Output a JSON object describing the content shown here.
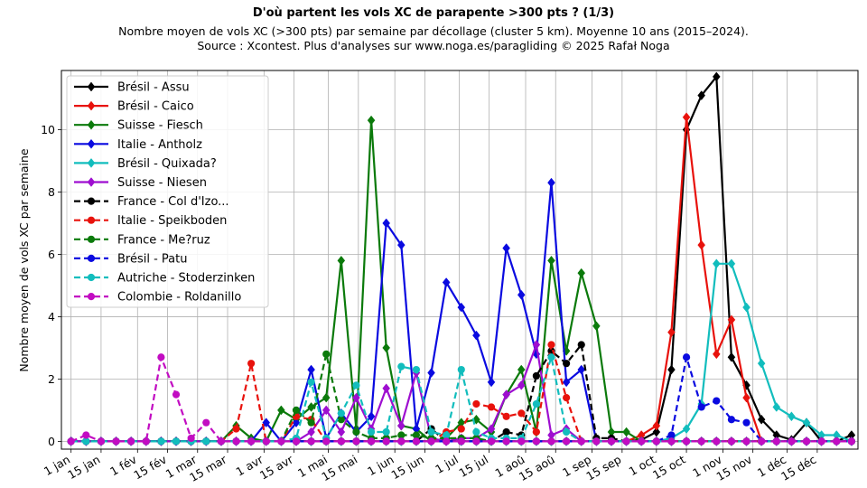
{
  "chart_data": {
    "type": "line",
    "title": "D'où partent les vols XC de parapente >300 pts ? (1/3)",
    "subtitle_lines": [
      "Nombre moyen de vols XC (>300 pts) par semaine par décollage (cluster 5 km). Moyenne 10 ans (2015–2024).",
      "Source : Xcontest. Plus d'analyses sur www.noga.es/paragliding © 2025 Rafał Noga"
    ],
    "ylabel": "Nombre moyen de vols XC par semaine",
    "xlabel": "",
    "x_ticks": [
      {
        "day": 1,
        "label": "1 jan"
      },
      {
        "day": 15,
        "label": "15 jan"
      },
      {
        "day": 32,
        "label": "1 fév"
      },
      {
        "day": 46,
        "label": "15 fév"
      },
      {
        "day": 60,
        "label": "1 mar"
      },
      {
        "day": 74,
        "label": "15 mar"
      },
      {
        "day": 91,
        "label": "1 avr"
      },
      {
        "day": 105,
        "label": "15 avr"
      },
      {
        "day": 121,
        "label": "1 mai"
      },
      {
        "day": 135,
        "label": "15 mai"
      },
      {
        "day": 152,
        "label": "1 jun"
      },
      {
        "day": 166,
        "label": "15 jun"
      },
      {
        "day": 182,
        "label": "1 jul"
      },
      {
        "day": 196,
        "label": "15 jul"
      },
      {
        "day": 213,
        "label": "1 aoû"
      },
      {
        "day": 227,
        "label": "15 aoû"
      },
      {
        "day": 244,
        "label": "1 sep"
      },
      {
        "day": 258,
        "label": "15 sep"
      },
      {
        "day": 274,
        "label": "1 oct"
      },
      {
        "day": 288,
        "label": "15 oct"
      },
      {
        "day": 305,
        "label": "1 nov"
      },
      {
        "day": 319,
        "label": "15 nov"
      },
      {
        "day": 335,
        "label": "1 déc"
      },
      {
        "day": 349,
        "label": "15 déc"
      }
    ],
    "y_ticks": [
      0,
      2,
      4,
      6,
      8,
      10
    ],
    "xlim": [
      -3.5,
      368
    ],
    "ylim": [
      -0.25,
      11.9
    ],
    "grid": true,
    "legend_position": "top-left",
    "week_day_of_year": [
      1,
      8,
      15,
      22,
      29,
      36,
      43,
      50,
      57,
      64,
      71,
      78,
      85,
      92,
      99,
      106,
      113,
      120,
      127,
      134,
      141,
      148,
      155,
      162,
      169,
      176,
      183,
      190,
      197,
      204,
      211,
      218,
      225,
      232,
      239,
      246,
      253,
      260,
      267,
      274,
      281,
      288,
      295,
      302,
      309,
      316,
      323,
      330,
      337,
      344,
      351,
      358,
      365
    ],
    "series": [
      {
        "name": "Brésil - Assu",
        "color": "#000000",
        "style": "solid",
        "marker": "diamond",
        "values": [
          0,
          0,
          0,
          0,
          0,
          0,
          0,
          0,
          0,
          0,
          0,
          0,
          0,
          0,
          0,
          0,
          0,
          0,
          0,
          0,
          0,
          0,
          0,
          0,
          0,
          0,
          0,
          0,
          0,
          0,
          0,
          0,
          0,
          0,
          0,
          0,
          0,
          0,
          0.05,
          0.3,
          2.3,
          10,
          11.1,
          11.7,
          2.7,
          1.8,
          0.7,
          0.2,
          0.05,
          0.6,
          0,
          0,
          0.2
        ]
      },
      {
        "name": "Brésil - Caico",
        "color": "#e8120c",
        "style": "solid",
        "marker": "diamond",
        "values": [
          0,
          0,
          0,
          0,
          0,
          0,
          0,
          0,
          0,
          0,
          0,
          0,
          0,
          0,
          0,
          0,
          0,
          0,
          0,
          0,
          0,
          0,
          0,
          0,
          0,
          0,
          0,
          0,
          0,
          0,
          0,
          0,
          0,
          0,
          0,
          0,
          0,
          0,
          0.2,
          0.5,
          3.5,
          10.4,
          6.3,
          2.8,
          3.9,
          1.4,
          0,
          0,
          0,
          0,
          0,
          0,
          0
        ]
      },
      {
        "name": "Suisse - Fiesch",
        "color": "#0b7a0b",
        "style": "solid",
        "marker": "diamond",
        "values": [
          0,
          0,
          0,
          0,
          0,
          0,
          0,
          0,
          0,
          0,
          0,
          0.5,
          0.1,
          0,
          1,
          0.7,
          1.1,
          1.4,
          5.8,
          0.4,
          10.3,
          3,
          0.5,
          0.4,
          0,
          0.1,
          0.6,
          0.7,
          0.3,
          1.5,
          2.3,
          0.3,
          5.8,
          2.9,
          5.4,
          3.7,
          0.3,
          0.3,
          0,
          0,
          0,
          0,
          0,
          0,
          0,
          0,
          0,
          0,
          0,
          0,
          0,
          0,
          0
        ]
      },
      {
        "name": "Italie - Antholz",
        "color": "#0a0ae0",
        "style": "solid",
        "marker": "diamond",
        "values": [
          0,
          0,
          0,
          0,
          0,
          0,
          0,
          0,
          0,
          0,
          0,
          0,
          0,
          0.6,
          0,
          0.6,
          2.3,
          0.1,
          0.9,
          0.3,
          0.8,
          7,
          6.3,
          0.4,
          2.2,
          5.1,
          4.3,
          3.4,
          1.9,
          6.2,
          4.7,
          2.8,
          8.3,
          1.9,
          2.3,
          0,
          0,
          0,
          0,
          0,
          0,
          0,
          0,
          0,
          0,
          0,
          0,
          0,
          0,
          0,
          0,
          0,
          0
        ]
      },
      {
        "name": "Brésil - Quixada?",
        "color": "#12bdbd",
        "style": "solid",
        "marker": "diamond",
        "values": [
          0,
          0,
          0,
          0,
          0,
          0,
          0,
          0,
          0,
          0,
          0,
          0,
          0,
          0,
          0,
          0,
          0,
          0,
          0,
          0,
          0,
          0,
          0,
          0,
          0,
          0,
          0,
          0,
          0,
          0,
          0,
          0,
          0,
          0,
          0,
          0,
          0,
          0,
          0,
          0,
          0.1,
          0.4,
          1.2,
          5.7,
          5.7,
          4.3,
          2.5,
          1.1,
          0.8,
          0.6,
          0.2,
          0.2,
          0
        ]
      },
      {
        "name": "Suisse - Niesen",
        "color": "#9e0ed0",
        "style": "solid",
        "marker": "diamond",
        "values": [
          0,
          0,
          0,
          0,
          0,
          0,
          0,
          0,
          0,
          0,
          0,
          0,
          0,
          0,
          0,
          0,
          0.3,
          1,
          0.3,
          1.4,
          0.4,
          1.7,
          0.5,
          2.2,
          0.1,
          0,
          0.1,
          0.1,
          0.4,
          1.5,
          1.8,
          3.1,
          0.2,
          0.4,
          0,
          0,
          0,
          0,
          0,
          0,
          0,
          0,
          0,
          0,
          0,
          0,
          0,
          0,
          0,
          0,
          0,
          0,
          0
        ]
      },
      {
        "name": "France - Col d'Izo...",
        "color": "#000000",
        "style": "dashed",
        "marker": "circle",
        "values": [
          0,
          0,
          0,
          0,
          0,
          0,
          0,
          0,
          0,
          0,
          0,
          0,
          0,
          0,
          0,
          0,
          0,
          0,
          0,
          0,
          0,
          0,
          0,
          0,
          0.4,
          0,
          0,
          0,
          0,
          0.3,
          0.2,
          2.1,
          2.9,
          2.5,
          3.1,
          0.1,
          0.1,
          0,
          0,
          0,
          0,
          0,
          0,
          0,
          0,
          0,
          0,
          0,
          0,
          0,
          0,
          0,
          0
        ]
      },
      {
        "name": "Italie - Speikboden",
        "color": "#e8120c",
        "style": "dashed",
        "marker": "circle",
        "values": [
          0,
          0,
          0,
          0,
          0,
          0,
          0,
          0,
          0,
          0,
          0,
          0.4,
          2.5,
          0,
          0,
          0.8,
          0.7,
          0,
          0,
          0,
          0,
          0,
          0,
          0,
          0,
          0.3,
          0.4,
          1.2,
          1.1,
          0.8,
          0.9,
          0.3,
          3.1,
          1.4,
          0,
          0,
          0,
          0,
          0,
          0,
          0,
          0,
          0,
          0,
          0,
          0,
          0,
          0,
          0,
          0,
          0,
          0,
          0
        ]
      },
      {
        "name": "France - Me?ruz",
        "color": "#0b7a0b",
        "style": "dashed",
        "marker": "circle",
        "values": [
          0,
          0,
          0,
          0,
          0,
          0,
          0,
          0,
          0,
          0,
          0,
          0,
          0,
          0,
          0,
          1,
          0.6,
          2.8,
          0.7,
          0.3,
          0.1,
          0.1,
          0.2,
          0.2,
          0.1,
          0.1,
          0.1,
          0.1,
          0,
          0,
          0,
          0,
          0,
          0,
          0,
          0,
          0,
          0,
          0,
          0,
          0,
          0,
          0,
          0,
          0,
          0,
          0,
          0,
          0,
          0,
          0,
          0,
          0
        ]
      },
      {
        "name": "Brésil - Patu",
        "color": "#0a0ae0",
        "style": "dashed",
        "marker": "circle",
        "values": [
          0,
          0,
          0,
          0,
          0,
          0,
          0,
          0,
          0,
          0,
          0,
          0,
          0,
          0,
          0,
          0,
          0,
          0,
          0,
          0,
          0,
          0,
          0,
          0,
          0,
          0,
          0,
          0,
          0,
          0,
          0,
          0,
          0,
          0,
          0,
          0,
          0,
          0,
          0,
          0,
          0.2,
          2.7,
          1.1,
          1.3,
          0.7,
          0.6,
          0,
          0,
          0,
          0,
          0,
          0,
          0
        ]
      },
      {
        "name": "Autriche - Stoderzinken",
        "color": "#12bdbd",
        "style": "dashed",
        "marker": "circle",
        "values": [
          0,
          0,
          0,
          0,
          0,
          0,
          0,
          0,
          0,
          0,
          0,
          0,
          0,
          0,
          0,
          0.1,
          1.9,
          0.1,
          0.9,
          1.8,
          0.3,
          0.3,
          2.4,
          2.3,
          0.3,
          0.2,
          2.3,
          0.3,
          0.1,
          0.1,
          0.1,
          1.2,
          2.7,
          0.3,
          0,
          0,
          0,
          0,
          0,
          0,
          0,
          0,
          0,
          0,
          0,
          0,
          0,
          0,
          0,
          0,
          0,
          0,
          0
        ]
      },
      {
        "name": "Colombie - Roldanillo",
        "color": "#c20cc2",
        "style": "dashed",
        "marker": "circle",
        "values": [
          0,
          0.2,
          0,
          0,
          0,
          0,
          2.7,
          1.5,
          0.1,
          0.6,
          0,
          0,
          0,
          0,
          0,
          0,
          0,
          0,
          0,
          0,
          0,
          0,
          0,
          0,
          0,
          0,
          0,
          0,
          0,
          0,
          0,
          0,
          0,
          0,
          0,
          0,
          0,
          0,
          0,
          0,
          0,
          0,
          0,
          0,
          0,
          0,
          0,
          0,
          0,
          0,
          0,
          0,
          0
        ]
      }
    ]
  }
}
